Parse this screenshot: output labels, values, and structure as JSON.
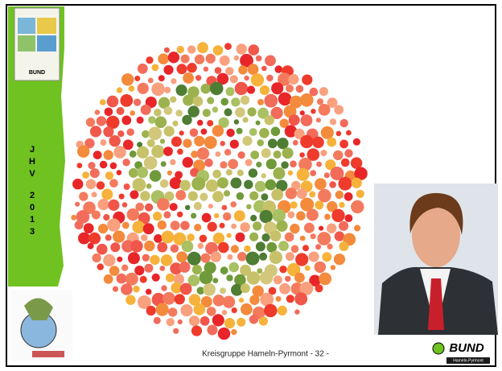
{
  "sidebar": {
    "letters": [
      "J",
      "H",
      "V",
      "2",
      "0",
      "1",
      "3"
    ]
  },
  "top_logo": {
    "name": "BUND"
  },
  "footer": {
    "text": "Kreisgruppe Hameln-Pyrmont - 32 -"
  },
  "logo": {
    "name": "BUND",
    "subtitle": "Hameln-Pyrmont"
  }
}
